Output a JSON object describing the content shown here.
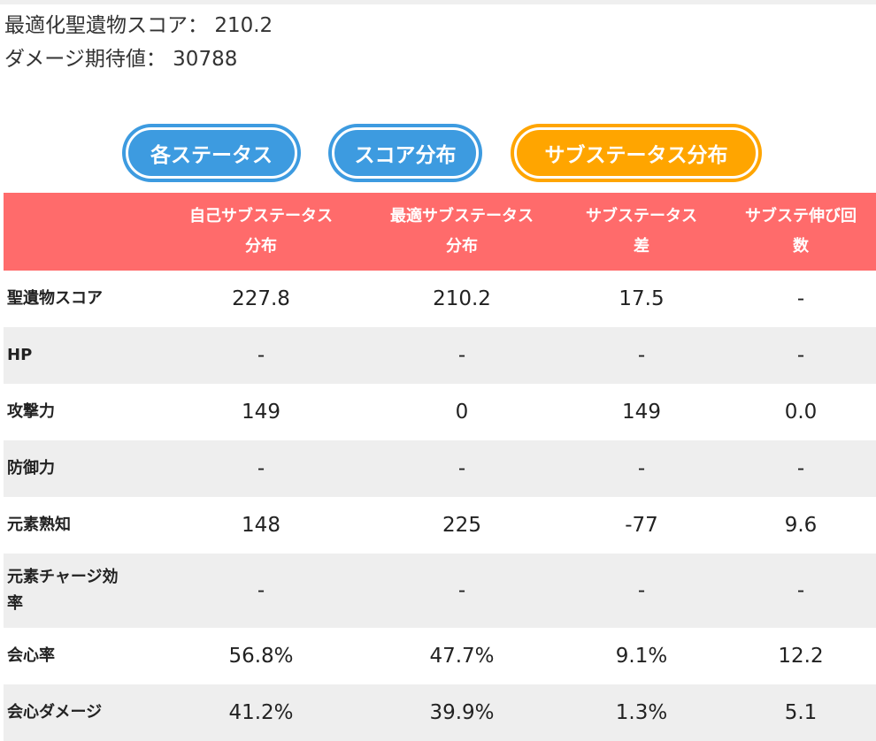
{
  "summary": {
    "optimized_score_label": "最適化聖遺物スコア：",
    "optimized_score_value": "210.2",
    "damage_label": "ダメージ期待値：",
    "damage_value": "30788"
  },
  "tabs": [
    {
      "label": "各ステータス",
      "color": "#3d9be0",
      "active": false
    },
    {
      "label": "スコア分布",
      "color": "#3d9be0",
      "active": false
    },
    {
      "label": "サブステータス分布",
      "color": "#ffa500",
      "active": true
    }
  ],
  "table": {
    "header_color": "#ff6b6b",
    "columns": [
      {
        "line1": "",
        "line2": ""
      },
      {
        "line1": "自己サブステータス",
        "line2": "分布"
      },
      {
        "line1": "最適サブステータス",
        "line2": "分布"
      },
      {
        "line1": "サブステータス",
        "line2": "差"
      },
      {
        "line1": "サブステ伸び回",
        "line2": "数"
      }
    ],
    "rows": [
      {
        "label1": "聖遺物スコア",
        "label2": "",
        "self": "227.8",
        "optimal": "210.2",
        "diff": "17.5",
        "diff_sign": "none",
        "rolls": "-"
      },
      {
        "label1": "HP",
        "label2": "",
        "self": "-",
        "optimal": "-",
        "diff": "-",
        "diff_sign": "none",
        "rolls": "-"
      },
      {
        "label1": "攻撃力",
        "label2": "",
        "self": "149",
        "optimal": "0",
        "diff": "149",
        "diff_sign": "pos",
        "rolls": "0.0"
      },
      {
        "label1": "防御力",
        "label2": "",
        "self": "-",
        "optimal": "-",
        "diff": "-",
        "diff_sign": "none",
        "rolls": "-"
      },
      {
        "label1": "元素熟知",
        "label2": "",
        "self": "148",
        "optimal": "225",
        "diff": "-77",
        "diff_sign": "neg",
        "rolls": "9.6"
      },
      {
        "label1": "元素チャージ効",
        "label2": "率",
        "self": "-",
        "optimal": "-",
        "diff": "-",
        "diff_sign": "none",
        "rolls": "-"
      },
      {
        "label1": "会心率",
        "label2": "",
        "self": "56.8%",
        "optimal": "47.7%",
        "diff": "9.1%",
        "diff_sign": "pos",
        "rolls": "12.2"
      },
      {
        "label1": "会心ダメージ",
        "label2": "",
        "self": "41.2%",
        "optimal": "39.9%",
        "diff": "1.3%",
        "diff_sign": "pos",
        "rolls": "5.1"
      }
    ]
  },
  "colors": {
    "positive": "#4caf50",
    "negative": "#e00000",
    "alt_row": "#eeeeee"
  }
}
